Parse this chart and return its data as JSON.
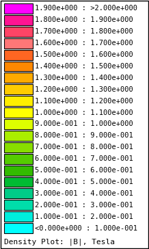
{
  "labels": [
    "1.900e+000 : >2.000e+000",
    "1.800e+000 : 1.900e+000",
    "1.700e+000 : 1.800e+000",
    "1.600e+000 : 1.700e+000",
    "1.500e+000 : 1.600e+000",
    "1.400e+000 : 1.500e+000",
    "1.300e+000 : 1.400e+000",
    "1.200e+000 : 1.300e+000",
    "1.100e+000 : 1.200e+000",
    "1.000e+000 : 1.100e+000",
    "9.000e-001 : 1.000e+000",
    "8.000e-001 : 9.000e-001",
    "7.000e-001 : 8.000e-001",
    "6.000e-001 : 7.000e-001",
    "5.000e-001 : 6.000e-001",
    "4.000e-001 : 5.000e-001",
    "3.000e-001 : 4.000e-001",
    "2.000e-001 : 3.000e-001",
    "1.000e-001 : 2.000e-001",
    "<0.000e+000 : 1.000e-001"
  ],
  "colors": [
    "#FF00FF",
    "#FF1493",
    "#FF4466",
    "#FF7777",
    "#FF6622",
    "#FF8800",
    "#FFAA00",
    "#FFCC00",
    "#FFEE00",
    "#FFFF00",
    "#DDFF00",
    "#AAEE00",
    "#88DD00",
    "#55CC00",
    "#33BB00",
    "#00BB33",
    "#00CC88",
    "#00DDAA",
    "#00EEDD",
    "#00FFFF"
  ],
  "title": "Density Plot: |B|, Tesla",
  "background_color": "#FFFFFF",
  "border_color": "#000000",
  "text_color": "#000000",
  "font_size": 7.5,
  "title_font_size": 8.0
}
